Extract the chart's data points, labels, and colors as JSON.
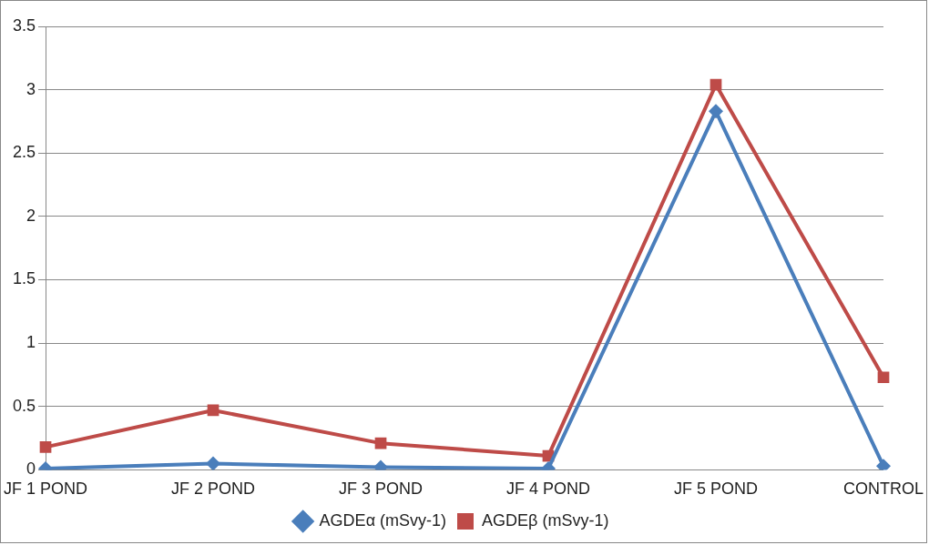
{
  "chart_data": {
    "type": "line",
    "categories": [
      "JF 1 POND",
      "JF 2 POND",
      "JF 3 POND",
      "JF 4 POND",
      "JF 5 POND",
      "CONTROL"
    ],
    "series": [
      {
        "name": "AGDEα (mSvy-1)",
        "color": "#4a7ebb",
        "marker": "diamond",
        "values": [
          0.01,
          0.05,
          0.02,
          0.01,
          2.83,
          0.03
        ]
      },
      {
        "name": "AGDEβ (mSvy-1)",
        "color": "#be4b48",
        "marker": "square",
        "values": [
          0.18,
          0.47,
          0.21,
          0.11,
          3.04,
          0.73
        ]
      }
    ],
    "ylim": [
      0,
      3.5
    ],
    "yticks": [
      0,
      0.5,
      1,
      1.5,
      2,
      2.5,
      3,
      3.5
    ],
    "grid": "y",
    "legend": "bottom",
    "line_style": "solid"
  }
}
